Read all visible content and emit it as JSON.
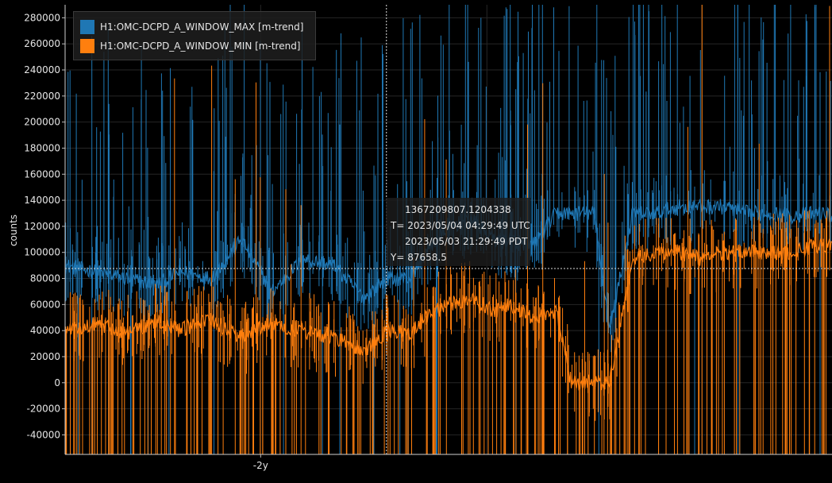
{
  "chart_data": {
    "type": "line",
    "ylabel": "counts",
    "xlabel": "",
    "ylim": [
      -55000,
      290000
    ],
    "yticks": [
      280000,
      260000,
      240000,
      220000,
      200000,
      180000,
      160000,
      140000,
      120000,
      100000,
      80000,
      60000,
      40000,
      20000,
      0,
      -20000,
      -40000
    ],
    "ytick_labels": [
      "280000",
      "260000",
      "240000",
      "220000",
      "200000",
      "180000",
      "160000",
      "140000",
      "120000",
      "100000",
      "80000",
      "60000",
      "40000",
      "20000",
      "0",
      "-20000",
      "-40000"
    ],
    "xtick_labels": [
      "-2y"
    ],
    "grid": true,
    "legend_position": "top-left",
    "series": [
      {
        "name": "H1:OMC-DCPD_A_WINDOW_MAX [m-trend]",
        "color": "#1f77b4",
        "x": [
          0.0,
          0.04,
          0.08,
          0.12,
          0.15,
          0.19,
          0.23,
          0.27,
          0.31,
          0.35,
          0.39,
          0.42,
          0.45,
          0.47,
          0.5,
          0.53,
          0.56,
          0.58,
          0.61,
          0.64,
          0.66,
          0.69,
          0.71,
          0.74,
          0.77,
          0.8,
          0.83,
          0.86,
          0.89,
          0.92,
          0.95,
          0.98,
          1.0
        ],
        "y": [
          90000,
          85000,
          80000,
          75000,
          85000,
          80000,
          110000,
          70000,
          95000,
          90000,
          65000,
          80000,
          80000,
          100000,
          120000,
          125000,
          110000,
          110000,
          105000,
          130000,
          130000,
          130000,
          40000,
          130000,
          130000,
          135000,
          135000,
          135000,
          130000,
          130000,
          128000,
          130000,
          128000
        ]
      },
      {
        "name": "H1:OMC-DCPD_A_WINDOW_MIN [m-trend]",
        "color": "#ff7f0e",
        "x": [
          0.0,
          0.04,
          0.08,
          0.12,
          0.15,
          0.19,
          0.23,
          0.27,
          0.31,
          0.35,
          0.39,
          0.42,
          0.45,
          0.47,
          0.5,
          0.53,
          0.56,
          0.58,
          0.61,
          0.64,
          0.66,
          0.69,
          0.71,
          0.74,
          0.77,
          0.8,
          0.83,
          0.86,
          0.89,
          0.92,
          0.95,
          0.98,
          1.0
        ],
        "y": [
          40000,
          45000,
          38000,
          48000,
          40000,
          48000,
          35000,
          45000,
          40000,
          35000,
          25000,
          40000,
          38000,
          50000,
          60000,
          65000,
          55000,
          60000,
          50000,
          55000,
          0,
          0,
          0,
          95000,
          100000,
          100000,
          95000,
          100000,
          100000,
          100000,
          100000,
          105000,
          105000
        ]
      }
    ],
    "crosshair": {
      "x": 0.419,
      "y": 87658.5
    },
    "tooltip": {
      "gps": "1367209807.1204338",
      "utc": "T= 2023/05/04 04:29:49 UTC",
      "local": "2023/05/03 21:29:49 PDT",
      "y": "Y= 87658.5"
    }
  }
}
